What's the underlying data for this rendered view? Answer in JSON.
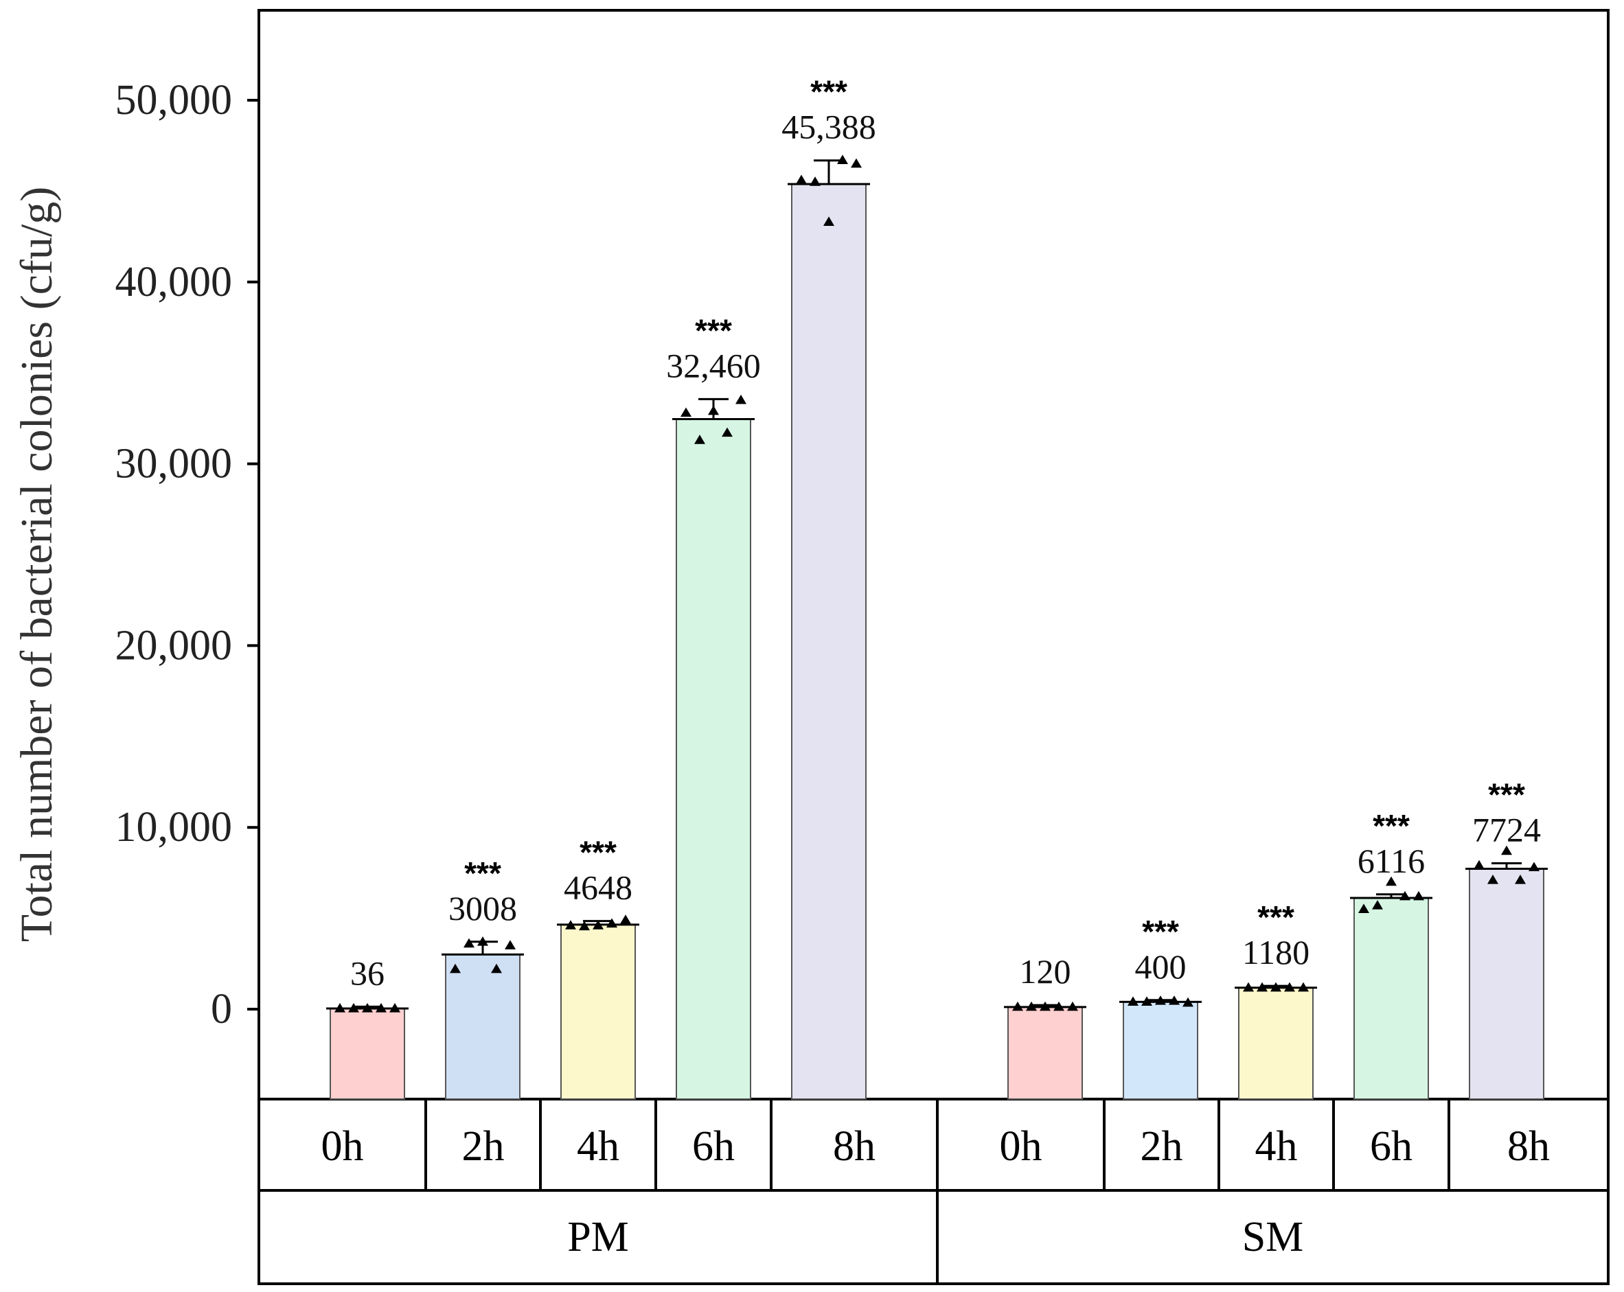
{
  "chart_data": {
    "type": "bar",
    "ylabel": "Total number of bacterial colonies (cfu/g)",
    "ylim": [
      -5000,
      55000
    ],
    "yticks": [
      0,
      10000,
      20000,
      30000,
      40000,
      50000
    ],
    "ytick_labels": [
      "0",
      "10,000",
      "20,000",
      "30,000",
      "40,000",
      "50,000"
    ],
    "groups": [
      {
        "name": "PM",
        "bars": [
          {
            "category": "0h",
            "value": 36,
            "label": "36",
            "error": 100,
            "significance": "",
            "points": [
              36,
              36,
              36,
              36,
              36
            ],
            "color": "#ffd0d0"
          },
          {
            "category": "2h",
            "value": 3008,
            "label": "3008",
            "error": 700,
            "significance": "***",
            "points": [
              2200,
              3600,
              3700,
              2200,
              3500
            ],
            "color": "#cfe0f5"
          },
          {
            "category": "4h",
            "value": 4648,
            "label": "4648",
            "error": 200,
            "significance": "***",
            "points": [
              4600,
              4550,
              4600,
              4700,
              4900
            ],
            "color": "#fdf8cc"
          },
          {
            "category": "6h",
            "value": 32460,
            "label": "32,460",
            "error": 1100,
            "significance": "***",
            "points": [
              32800,
              31300,
              32900,
              31700,
              33500
            ],
            "color": "#d6f6e3"
          },
          {
            "category": "8h",
            "value": 45388,
            "label": "45,388",
            "error": 1300,
            "significance": "***",
            "points": [
              45600,
              45500,
              43300,
              46700,
              46500
            ],
            "color": "#e3e3f1"
          }
        ]
      },
      {
        "name": "SM",
        "bars": [
          {
            "category": "0h",
            "value": 120,
            "label": "120",
            "error": 100,
            "significance": "",
            "points": [
              120,
              120,
              120,
              120,
              120
            ],
            "color": "#ffd0d0"
          },
          {
            "category": "2h",
            "value": 400,
            "label": "400",
            "error": 100,
            "significance": "***",
            "points": [
              400,
              400,
              450,
              450,
              350
            ],
            "color": "#d3e7fb"
          },
          {
            "category": "4h",
            "value": 1180,
            "label": "1180",
            "error": 100,
            "significance": "***",
            "points": [
              1180,
              1180,
              1180,
              1180,
              1180
            ],
            "color": "#fdf8cc"
          },
          {
            "category": "6h",
            "value": 6116,
            "label": "6116",
            "error": 200,
            "significance": "***",
            "points": [
              5500,
              5700,
              7000,
              6200,
              6200
            ],
            "color": "#d6f6e3"
          },
          {
            "category": "8h",
            "value": 7724,
            "label": "7724",
            "error": 300,
            "significance": "***",
            "points": [
              7900,
              7100,
              8700,
              7100,
              7800
            ],
            "color": "#e3e3f1"
          }
        ]
      }
    ]
  }
}
